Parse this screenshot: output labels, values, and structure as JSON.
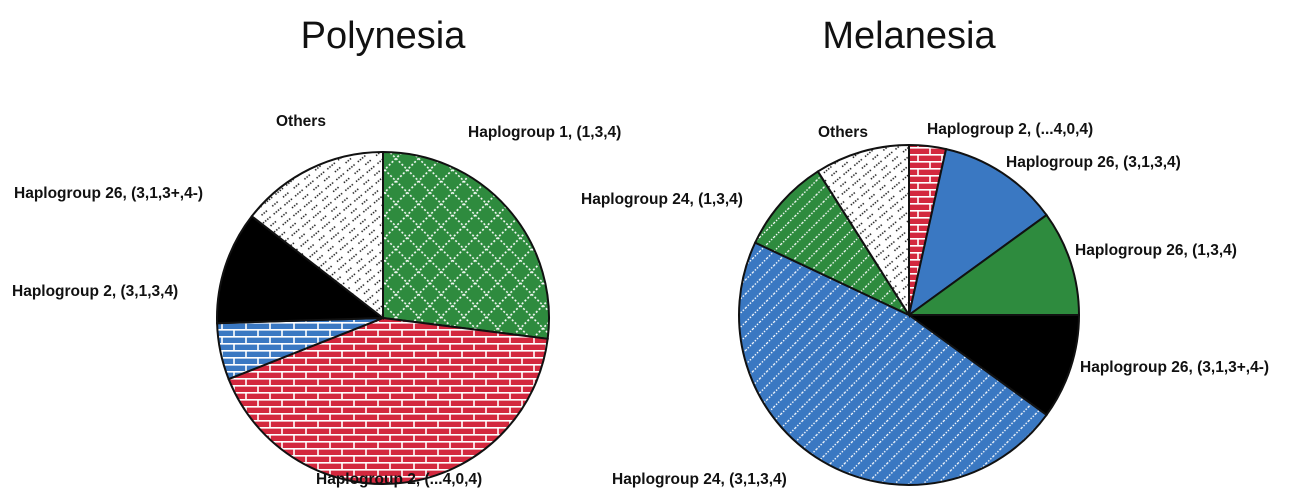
{
  "chart_data": [
    {
      "type": "pie",
      "title": "Polynesia",
      "start_angle_deg": 0,
      "direction": "clockwise",
      "slices": [
        {
          "label": "Haplogroup 1, (1,3,4)",
          "value": 27,
          "color": "#2e8b3e",
          "pattern": "crosshatch"
        },
        {
          "label": "Haplogroup 2, (...4,0,4)",
          "value": 42,
          "color": "#d3283e",
          "pattern": "brick"
        },
        {
          "label": "Haplogroup 2, (3,1,3,4)",
          "value": 5.5,
          "color": "#3a78c2",
          "pattern": "brick"
        },
        {
          "label": "Haplogroup 26, (3,1,3+,4-)",
          "value": 11,
          "color": "#000000",
          "pattern": "solid"
        },
        {
          "label": "Others",
          "value": 14.5,
          "color": "#ffffff",
          "pattern": "dots"
        }
      ]
    },
    {
      "type": "pie",
      "title": "Melanesia",
      "start_angle_deg": 0,
      "direction": "clockwise",
      "slices": [
        {
          "label": "Haplogroup 2, (...4,0,4)",
          "value": 3.5,
          "color": "#d3283e",
          "pattern": "brick"
        },
        {
          "label": "Haplogroup 26, (3,1,3,4)",
          "value": 11.5,
          "color": "#3a78c2",
          "pattern": "solid"
        },
        {
          "label": "Haplogroup 26, (1,3,4)",
          "value": 10,
          "color": "#2e8b3e",
          "pattern": "solid"
        },
        {
          "label": "Haplogroup 26, (3,1,3+,4-)",
          "value": 10,
          "color": "#000000",
          "pattern": "solid"
        },
        {
          "label": "Haplogroup 24, (3,1,3,4)",
          "value": 47,
          "color": "#3a78c2",
          "pattern": "diagonal"
        },
        {
          "label": "Haplogroup 24, (1,3,4)",
          "value": 9,
          "color": "#2e8b3e",
          "pattern": "diagonal"
        },
        {
          "label": "Others",
          "value": 9,
          "color": "#ffffff",
          "pattern": "dots"
        }
      ]
    }
  ]
}
